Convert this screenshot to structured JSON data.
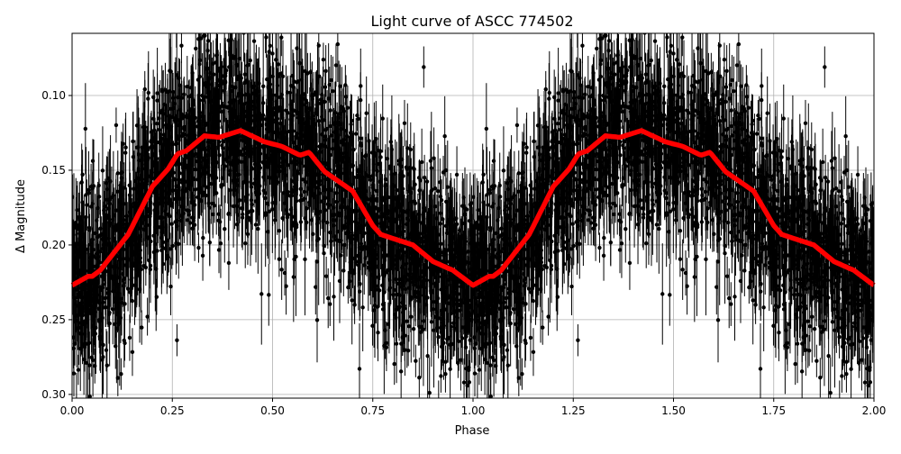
{
  "chart_data": {
    "type": "scatter",
    "title": "Light curve of ASCC 774502",
    "xlabel": "Phase",
    "ylabel": "Δ Magnitude",
    "xlim": [
      0,
      2
    ],
    "ylim": [
      0.3025,
      0.0584
    ],
    "y_inverted": true,
    "grid": true,
    "x_ticks": [
      "0.00",
      "0.25",
      "0.50",
      "0.75",
      "1.00",
      "1.25",
      "1.50",
      "1.75",
      "2.00"
    ],
    "y_ticks": [
      "0.10",
      "0.15",
      "0.20",
      "0.25",
      "0.30"
    ],
    "series": [
      {
        "kind": "errorbar-scatter",
        "color": "#000000",
        "note_visible": "dense observations with vertical error bars, scatter around binned curve"
      },
      {
        "kind": "line",
        "color": "#ff0000",
        "phase": [
          0.0,
          0.04,
          0.05,
          0.07,
          0.14,
          0.2,
          0.24,
          0.263,
          0.285,
          0.33,
          0.367,
          0.42,
          0.48,
          0.523,
          0.568,
          0.591,
          0.63,
          0.7,
          0.75,
          0.77,
          0.85,
          0.9,
          0.95,
          1.0
        ],
        "magnitude": [
          0.227,
          0.221,
          0.221,
          0.217,
          0.193,
          0.161,
          0.149,
          0.139,
          0.137,
          0.127,
          0.128,
          0.1235,
          0.131,
          0.134,
          0.14,
          0.138,
          0.151,
          0.164,
          0.187,
          0.193,
          0.2,
          0.211,
          0.217,
          0.227
        ],
        "repeats_period": 1
      }
    ]
  }
}
